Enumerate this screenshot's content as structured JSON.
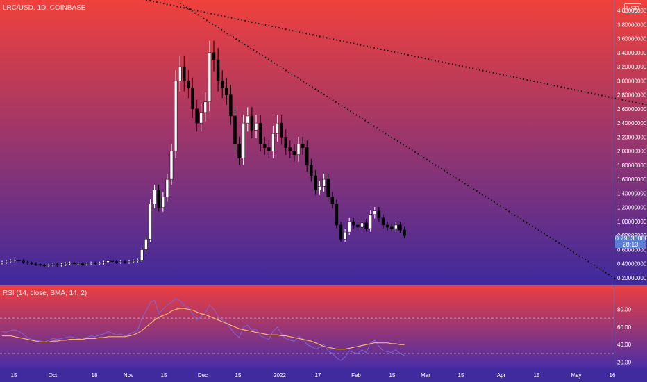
{
  "symbol_title": "LRC/USD, 1D, COINBASE",
  "currency_badge": "USD",
  "rsi_title": "RSI (14, close, SMA, 14, 2)",
  "last_price": {
    "value": "0.79530000",
    "countdown": "28:13"
  },
  "colors": {
    "bg_top": "#f0413c",
    "bg_bottom": "#3f2a9e",
    "up": "#ffffff",
    "down": "#000000",
    "rsi_line": "#8064d6",
    "rsi_ma": "#f5b46a",
    "trendline": "#000000",
    "tag": "#5b7fd6"
  },
  "chart_data": [
    {
      "type": "candlestick",
      "ylim": [
        0.15,
        4.05
      ],
      "y_ticks": [
        "4.00000000",
        "3.80000000",
        "3.60000000",
        "3.40000000",
        "3.20000000",
        "3.00000000",
        "2.80000000",
        "2.60000000",
        "2.40000000",
        "2.20000000",
        "2.00000000",
        "1.80000000",
        "1.60000000",
        "1.40000000",
        "1.20000000",
        "1.00000000",
        "0.80000000",
        "0.60000000",
        "0.40000000",
        "0.20000000"
      ],
      "x_ticks": [
        "15",
        "Oct",
        "18",
        "Nov",
        "15",
        "Dec",
        "15",
        "2022",
        "17",
        "Feb",
        "15",
        "Mar",
        "15",
        "Apr",
        "15",
        "May",
        "16"
      ],
      "close_series": [
        0.42,
        0.43,
        0.44,
        0.45,
        0.44,
        0.42,
        0.41,
        0.4,
        0.39,
        0.38,
        0.37,
        0.38,
        0.39,
        0.38,
        0.39,
        0.4,
        0.41,
        0.4,
        0.4,
        0.39,
        0.4,
        0.41,
        0.4,
        0.41,
        0.42,
        0.44,
        0.43,
        0.42,
        0.43,
        0.42,
        0.43,
        0.44,
        0.45,
        0.6,
        0.75,
        1.25,
        1.45,
        1.2,
        1.35,
        1.6,
        2.0,
        3.0,
        3.2,
        3.0,
        2.9,
        2.6,
        2.4,
        2.55,
        2.7,
        3.4,
        3.3,
        3.0,
        2.9,
        2.8,
        2.5,
        2.1,
        1.9,
        2.4,
        2.5,
        2.3,
        2.4,
        2.1,
        2.05,
        2.0,
        2.25,
        2.4,
        2.2,
        2.05,
        2.0,
        1.95,
        2.1,
        2.05,
        1.8,
        1.65,
        1.45,
        1.5,
        1.6,
        1.35,
        1.25,
        0.95,
        0.75,
        0.85,
        1.0,
        0.95,
        0.92,
        0.98,
        0.9,
        1.1,
        1.15,
        1.05,
        0.95,
        0.92,
        0.9,
        0.95,
        0.88,
        0.8
      ],
      "trendlines": [
        {
          "from": {
            "bar": 42,
            "price": 4.1
          },
          "to": {
            "bar": 145,
            "price": 0.18
          }
        },
        {
          "from": {
            "bar": 30,
            "price": 4.2
          },
          "to": {
            "bar": 190,
            "price": 2.18
          }
        }
      ]
    },
    {
      "type": "line",
      "name": "RSI",
      "ylim": [
        15,
        100
      ],
      "y_ticks": [
        "80.00",
        "60.00",
        "40.00",
        "20.00"
      ],
      "levels": [
        70,
        30
      ],
      "rsi": [
        55,
        54,
        56,
        57,
        55,
        52,
        48,
        46,
        45,
        44,
        43,
        45,
        47,
        46,
        47,
        48,
        49,
        48,
        47,
        46,
        48,
        50,
        49,
        51,
        52,
        55,
        53,
        51,
        52,
        50,
        52,
        54,
        56,
        70,
        78,
        88,
        90,
        75,
        80,
        85,
        88,
        92,
        90,
        85,
        82,
        75,
        68,
        72,
        76,
        85,
        80,
        72,
        68,
        65,
        58,
        52,
        48,
        60,
        62,
        56,
        58,
        50,
        48,
        46,
        55,
        60,
        52,
        47,
        45,
        44,
        49,
        47,
        40,
        38,
        35,
        37,
        40,
        33,
        30,
        25,
        22,
        26,
        33,
        31,
        30,
        34,
        31,
        42,
        45,
        38,
        33,
        32,
        31,
        34,
        30,
        28
      ],
      "rsi_ma": [
        50,
        50,
        50,
        49,
        48,
        47,
        46,
        45,
        44,
        43,
        43,
        43,
        44,
        44,
        45,
        45,
        46,
        46,
        46,
        46,
        47,
        47,
        47,
        48,
        48,
        49,
        49,
        49,
        49,
        49,
        50,
        51,
        53,
        56,
        60,
        64,
        68,
        71,
        73,
        75,
        78,
        80,
        81,
        81,
        80,
        79,
        77,
        75,
        74,
        72,
        70,
        68,
        66,
        64,
        62,
        60,
        58,
        57,
        56,
        55,
        54,
        53,
        52,
        51,
        51,
        51,
        50,
        50,
        49,
        48,
        47,
        46,
        45,
        44,
        42,
        40,
        38,
        37,
        36,
        35,
        35,
        35,
        36,
        37,
        38,
        39,
        40,
        41,
        42,
        42,
        42,
        42,
        41,
        41,
        40,
        40
      ]
    }
  ]
}
